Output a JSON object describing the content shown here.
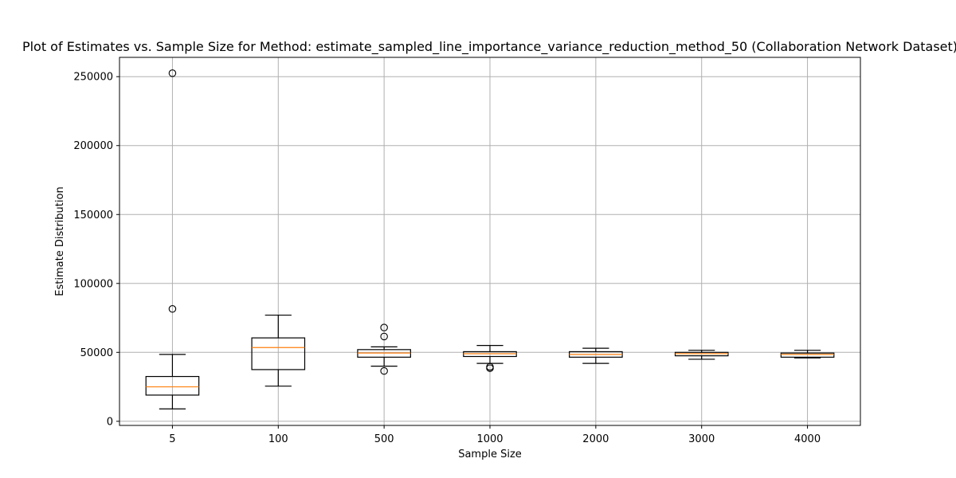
{
  "chart_data": {
    "type": "box",
    "title": "Plot of Estimates vs. Sample Size for Method: estimate_sampled_line_importance_variance_reduction_method_50 (Collaboration Network Dataset)",
    "xlabel": "Sample Size",
    "ylabel": "Estimate Distribution",
    "categories": [
      "5",
      "100",
      "500",
      "1000",
      "2000",
      "3000",
      "4000"
    ],
    "ylim": [
      -3000,
      264000
    ],
    "yticks": [
      0,
      50000,
      100000,
      150000,
      200000,
      250000
    ],
    "ytick_labels": [
      "0",
      "50000",
      "100000",
      "150000",
      "200000",
      "250000"
    ],
    "grid": true,
    "median_color": "#ff7f0e",
    "box_color": "#000000",
    "grid_color": "#b0b0b0",
    "boxes": [
      {
        "category": "5",
        "whisker_low": 9000,
        "q1": 19000,
        "median": 25000,
        "q3": 32500,
        "whisker_high": 48500,
        "outliers": [
          81500,
          252500
        ]
      },
      {
        "category": "100",
        "whisker_low": 25500,
        "q1": 37500,
        "median": 53500,
        "q3": 60500,
        "whisker_high": 77000,
        "outliers": []
      },
      {
        "category": "500",
        "whisker_low": 40000,
        "q1": 46500,
        "median": 49500,
        "q3": 52000,
        "whisker_high": 54000,
        "outliers": [
          36500,
          61500,
          68000
        ]
      },
      {
        "category": "1000",
        "whisker_low": 42000,
        "q1": 47000,
        "median": 49000,
        "q3": 50500,
        "whisker_high": 55000,
        "outliers": [
          38500,
          39500
        ]
      },
      {
        "category": "2000",
        "whisker_low": 42000,
        "q1": 46500,
        "median": 48500,
        "q3": 50500,
        "whisker_high": 53000,
        "outliers": []
      },
      {
        "category": "3000",
        "whisker_low": 45000,
        "q1": 47500,
        "median": 49000,
        "q3": 50000,
        "whisker_high": 51500,
        "outliers": []
      },
      {
        "category": "4000",
        "whisker_low": 46000,
        "q1": 46500,
        "median": 48500,
        "q3": 49500,
        "whisker_high": 51500,
        "outliers": []
      }
    ]
  }
}
